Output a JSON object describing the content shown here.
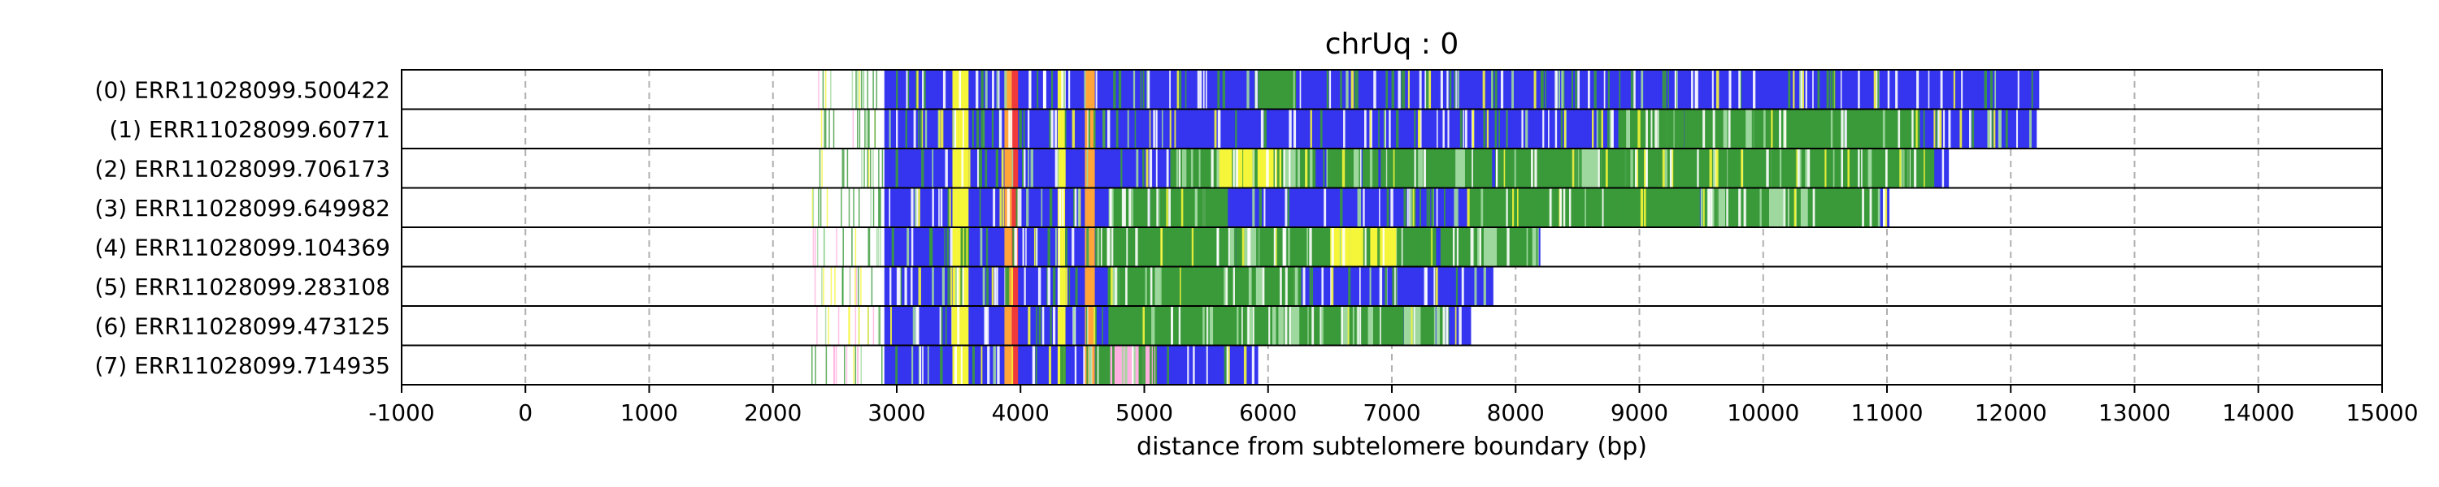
{
  "chart_data": {
    "type": "bar",
    "title": "chrUq : 0",
    "xlabel": "distance from subtelomere boundary (bp)",
    "ylabel": "",
    "xlim": [
      -1000,
      15000
    ],
    "xticks": [
      -1000,
      0,
      1000,
      2000,
      3000,
      4000,
      5000,
      6000,
      7000,
      8000,
      9000,
      10000,
      11000,
      12000,
      13000,
      14000,
      15000
    ],
    "grid": "vertical dashed",
    "colors": {
      "main": "#3535f0",
      "green": "#3a9a3a",
      "yellow": "#f5f53a",
      "orange": "#ffa53a",
      "red": "#f03a3a",
      "pink": "#ffb0e0",
      "light_green": "#9fd89f",
      "white": "#ffffff"
    },
    "reads": [
      {
        "label": "(0) ERR11028099.500422",
        "end": 12230,
        "pre_start": 2300
      },
      {
        "label": "(1) ERR11028099.60771",
        "end": 12210,
        "pre_start": 2330
      },
      {
        "label": "(2) ERR11028099.706173",
        "end": 11500,
        "pre_start": 2330
      },
      {
        "label": "(3) ERR11028099.649982",
        "end": 11020,
        "pre_start": 2300
      },
      {
        "label": "(4) ERR11028099.104369",
        "end": 8200,
        "pre_start": 2300
      },
      {
        "label": "(5) ERR11028099.283108",
        "end": 7820,
        "pre_start": 2330
      },
      {
        "label": "(6) ERR11028099.473125",
        "end": 7640,
        "pre_start": 2330
      },
      {
        "label": "(7) ERR11028099.714935",
        "end": 5920,
        "pre_start": 2150
      }
    ],
    "common_segments": [
      {
        "start": 2900,
        "end": 3450,
        "color": "main"
      },
      {
        "start": 3450,
        "end": 3580,
        "color": "yellow"
      },
      {
        "start": 3580,
        "end": 3870,
        "color": "main"
      },
      {
        "start": 3870,
        "end": 3930,
        "color": "orange"
      },
      {
        "start": 3930,
        "end": 3980,
        "color": "red"
      },
      {
        "start": 3980,
        "end": 4300,
        "color": "main"
      },
      {
        "start": 4300,
        "end": 4360,
        "color": "yellow"
      },
      {
        "start": 4360,
        "end": 4520,
        "color": "main"
      },
      {
        "start": 4520,
        "end": 4600,
        "color": "orange"
      }
    ],
    "green_zones": [
      [
        {
          "start": 5900,
          "end": 6250
        }
      ],
      [
        {
          "start": 8800,
          "end": 11200
        }
      ],
      [
        {
          "start": 5200,
          "end": 11300
        }
      ],
      [
        {
          "start": 4700,
          "end": 5600
        },
        {
          "start": 7600,
          "end": 10900
        }
      ],
      [
        {
          "start": 4600,
          "end": 8100
        }
      ],
      [
        {
          "start": 4700,
          "end": 6200
        }
      ],
      [
        {
          "start": 4700,
          "end": 7400
        }
      ],
      [
        {
          "start": 4600,
          "end": 5000
        }
      ]
    ],
    "highlight_zones": [
      [],
      [],
      [
        {
          "start": 5600,
          "end": 6100,
          "color": "yellow"
        }
      ],
      [],
      [
        {
          "start": 6500,
          "end": 7000,
          "color": "yellow"
        }
      ],
      [],
      [],
      [
        {
          "start": 4700,
          "end": 5050,
          "color": "pink"
        }
      ]
    ]
  }
}
